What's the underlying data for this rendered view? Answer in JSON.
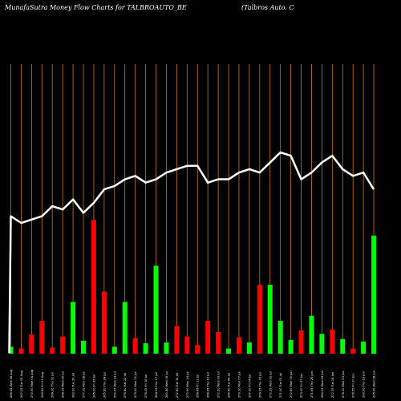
{
  "title_left": "MunafaSutra  Money Flow  Charts for TALBROAUTO_BE",
  "title_right": "(Talbros Auto. C",
  "colors": {
    "background": "#000000",
    "grid": "#c8781e",
    "up": "#00ff00",
    "down": "#ff0000",
    "line": "#ffffff",
    "text": "#ffffff"
  },
  "chart_data": {
    "type": "bar",
    "categories": [
      "266.45 Wed 06 Aug",
      "267.05 Tue 05 Aug",
      "270.90 Mon 04 Aug",
      "269.60 Fri 01 Aug",
      "268.30 Thu 31 Jul",
      "268.35 Wed 30 Jul",
      "282.00 Tue 29 Jul",
      "277.35 Mon 28 Jul",
      "265.00 Fri 25 Jul",
      "265.50 Thu 24 Jul",
      "272.05 Wed 23 Jul",
      "276.60 Tue 22 Jul",
      "275.20 Mon 21 Jul",
      "276.05 Fri 18 Jul",
      "284.15 Thu 17 Jul",
      "280.40 Wed 16 Jul",
      "272.80 Tue 15 Jul",
      "273.90 Mon 14 Jul",
      "266.45 Fri 11 Jul",
      "268.95 Thu 10 Jul",
      "272.20 Wed 09 Jul",
      "266.80 Tue 08 Jul",
      "270.10 Mon 07 Jul",
      "267.30 Fri 04 Jul",
      "269.25 Thu 03 Jul",
      "272.25 Wed 02 Jul",
      "271.00 Tue 01 Jul",
      "272.60 Mon 30 Jun",
      "273.20 Fri 27 Jun",
      "271.65 Thu 26 Jun",
      "280.25 Wed 25 Jun",
      "272.35 Tue 24 Jun",
      "276.10 Mon 23 Jun",
      "279.55 Fri 20 Jun",
      "283.90 Thu 19 Jun",
      "295.00 Wed 18 Jun"
    ],
    "series": [
      {
        "values": [
          0.8,
          0.6,
          2.2,
          3.8,
          0.7,
          2.0,
          6.0,
          1.5,
          15.5,
          7.2,
          0.8,
          6.0,
          1.8,
          1.2,
          10.2,
          1.3,
          3.2,
          2.0,
          1.0,
          3.8,
          2.5,
          0.6,
          1.9,
          1.3,
          8.0,
          8.0,
          3.8,
          1.6,
          2.7,
          4.4,
          2.3,
          2.8,
          1.7,
          0.6,
          1.4,
          13.7
        ],
        "colors": [
          "up",
          "down",
          "down",
          "down",
          "down",
          "down",
          "up",
          "up",
          "down",
          "down",
          "up",
          "up",
          "down",
          "up",
          "up",
          "up",
          "down",
          "down",
          "down",
          "down",
          "down",
          "up",
          "down",
          "up",
          "down",
          "up",
          "up",
          "up",
          "down",
          "up",
          "up",
          "down",
          "up",
          "down",
          "up",
          "up"
        ]
      }
    ],
    "line": [
      1.6,
      1.5,
      1.55,
      1.6,
      1.75,
      1.7,
      1.85,
      1.65,
      1.8,
      2.0,
      2.05,
      2.15,
      2.2,
      2.1,
      2.15,
      2.25,
      2.3,
      2.35,
      2.35,
      2.1,
      2.15,
      2.15,
      2.25,
      2.3,
      2.25,
      2.4,
      2.55,
      2.5,
      2.15,
      2.25,
      2.4,
      2.5,
      2.3,
      2.2,
      2.25,
      2.0
    ],
    "note_on_line": "line values are relative index levels read bottom-up; higher = higher on chart"
  }
}
